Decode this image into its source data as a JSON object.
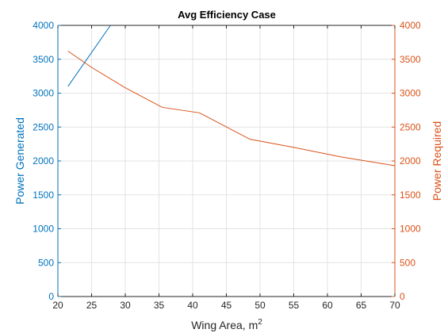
{
  "chart_data": {
    "type": "line",
    "title": "Avg Efficiency Case",
    "xlabel": "Wing Area, m",
    "xlabel_superscript": "2",
    "ylabel_left": "Power Generated",
    "ylabel_right": "Power Required",
    "xlim": [
      20,
      70
    ],
    "ylim_left": [
      0,
      4000
    ],
    "ylim_right": [
      0,
      4000
    ],
    "x_ticks": [
      20,
      25,
      30,
      35,
      40,
      45,
      50,
      55,
      60,
      65,
      70
    ],
    "y_ticks_left": [
      0,
      500,
      1000,
      1500,
      2000,
      2500,
      3000,
      3500,
      4000
    ],
    "y_ticks_right": [
      0,
      500,
      1000,
      1500,
      2000,
      2500,
      3000,
      3500,
      4000
    ],
    "grid": true,
    "series": [
      {
        "axis": "left",
        "color": "#0072BD",
        "x": [
          21.5,
          27.8
        ],
        "y": [
          3100,
          4000
        ]
      },
      {
        "axis": "right",
        "color": "#D95319",
        "x": [
          21.5,
          25,
          30,
          35.5,
          41,
          48.5,
          55,
          62,
          70
        ],
        "y": [
          3620,
          3380,
          3080,
          2790,
          2710,
          2320,
          2200,
          2060,
          1930
        ]
      }
    ],
    "colors": {
      "left_axis": "#0072BD",
      "right_axis": "#D95319",
      "x_axis": "#262626",
      "grid": "#e3e3e3"
    }
  }
}
